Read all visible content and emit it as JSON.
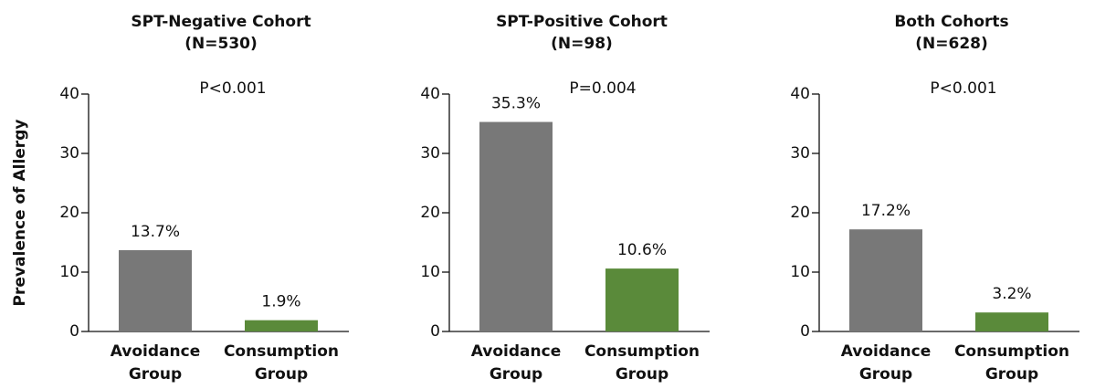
{
  "chart_data": [
    {
      "type": "bar",
      "title": "SPT-Negative Cohort",
      "subtitle": "(N=530)",
      "annotation": "P<0.001",
      "ylabel": "Prevalence of Allergy",
      "categories": [
        "Avoidance Group",
        "Consumption Group"
      ],
      "values": [
        13.7,
        1.9
      ],
      "value_labels": [
        "13.7%",
        "1.9%"
      ],
      "colors": [
        "#787878",
        "#5a8a3a"
      ],
      "ylim": [
        0,
        40
      ],
      "yticks": [
        0,
        10,
        20,
        30,
        40
      ]
    },
    {
      "type": "bar",
      "title": "SPT-Positive Cohort",
      "subtitle": "(N=98)",
      "annotation": "P=0.004",
      "categories": [
        "Avoidance Group",
        "Consumption Group"
      ],
      "values": [
        35.3,
        10.6
      ],
      "value_labels": [
        "35.3%",
        "10.6%"
      ],
      "colors": [
        "#787878",
        "#5a8a3a"
      ],
      "ylim": [
        0,
        40
      ],
      "yticks": [
        0,
        10,
        20,
        30,
        40
      ]
    },
    {
      "type": "bar",
      "title": "Both Cohorts",
      "subtitle": "(N=628)",
      "annotation": "P<0.001",
      "categories": [
        "Avoidance Group",
        "Consumption Group"
      ],
      "values": [
        17.2,
        3.2
      ],
      "value_labels": [
        "17.2%",
        "3.2%"
      ],
      "colors": [
        "#787878",
        "#5a8a3a"
      ],
      "ylim": [
        0,
        40
      ],
      "yticks": [
        0,
        10,
        20,
        30,
        40
      ]
    }
  ]
}
